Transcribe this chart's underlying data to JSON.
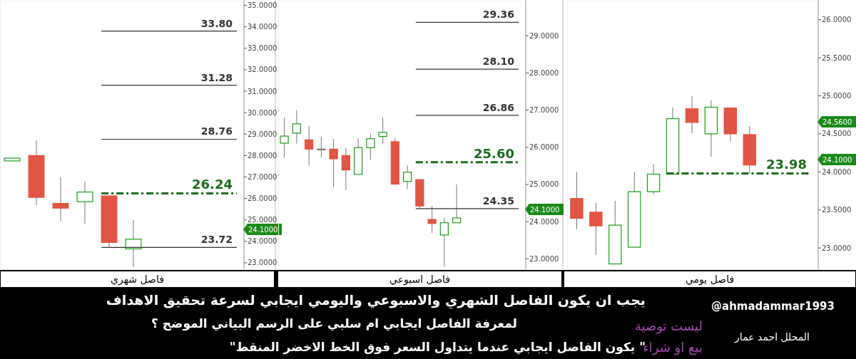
{
  "chart_data": [
    {
      "type": "candlestick",
      "xlabel": "فاصل شهري",
      "categories": [
        null,
        null,
        null,
        null,
        null,
        null,
        null,
        null,
        null,
        null
      ],
      "ohlc": [
        [
          27.75,
          27.9,
          27.75,
          27.88
        ],
        [
          28.0,
          28.7,
          25.7,
          26.05
        ],
        [
          25.77,
          27.0,
          24.93,
          25.55
        ],
        [
          25.85,
          26.79,
          24.83,
          26.3
        ],
        [
          26.12,
          26.12,
          23.7,
          23.95
        ],
        [
          23.65,
          25.0,
          22.8,
          24.1
        ],
        null,
        null,
        null,
        null
      ],
      "ylim": [
        22.7,
        35.25
      ],
      "yticks": [
        {
          "value": 23,
          "label": "23.0000"
        },
        {
          "value": 24,
          "label": "24.0000"
        },
        {
          "value": 25,
          "label": "25.0000"
        },
        {
          "value": 26,
          "label": "26.0000"
        },
        {
          "value": 27,
          "label": "27.0000"
        },
        {
          "value": 28,
          "label": "28.0000"
        },
        {
          "value": 29,
          "label": "29.0000"
        },
        {
          "value": 30,
          "label": "30.0000"
        },
        {
          "value": 31,
          "label": "31.0000"
        },
        {
          "value": 32,
          "label": "32.0000"
        },
        {
          "value": 33,
          "label": "33.0000"
        },
        {
          "value": 34,
          "label": "34.0000"
        },
        {
          "value": 35,
          "label": "35.0000"
        }
      ],
      "ref_lines": [
        {
          "axis": "y",
          "value": 33.8,
          "label": "33.80",
          "color": "#333333",
          "line_style": "solid"
        },
        {
          "axis": "y",
          "value": 31.28,
          "label": "31.28",
          "color": "#333333",
          "line_style": "solid"
        },
        {
          "axis": "y",
          "value": 28.76,
          "label": "28.76",
          "color": "#333333",
          "line_style": "solid"
        },
        {
          "axis": "y",
          "value": 26.24,
          "label": "26.24",
          "color": "#1f6b1f",
          "line_style": "dashed"
        },
        {
          "axis": "y",
          "value": 23.72,
          "label": "23.72",
          "color": "#333333",
          "line_style": "solid"
        }
      ],
      "annotations": [
        "24.1000"
      ]
    },
    {
      "type": "candlestick",
      "xlabel": "فاصل اسبوعي",
      "categories": [
        null,
        null,
        null,
        null,
        null,
        null,
        null,
        null,
        null,
        null,
        null,
        null,
        null,
        null,
        null,
        null,
        null,
        null,
        null,
        null
      ],
      "ohlc": [
        [
          26.11,
          26.8,
          25.72,
          26.3
        ],
        [
          26.38,
          27.0,
          26.1,
          26.63
        ],
        [
          26.2,
          26.57,
          25.51,
          25.95
        ],
        [
          25.95,
          26.29,
          25.73,
          25.95
        ],
        [
          25.95,
          26.22,
          24.93,
          25.69
        ],
        [
          25.78,
          25.99,
          24.85,
          25.39
        ],
        [
          25.27,
          26.24,
          25.27,
          25.99
        ],
        [
          25.99,
          26.37,
          25.67,
          26.23
        ],
        [
          26.29,
          26.8,
          26.1,
          26.4
        ],
        [
          26.15,
          26.24,
          25.01,
          25.01
        ],
        [
          25.08,
          25.51,
          24.88,
          25.33
        ],
        [
          25.13,
          25.13,
          24.35,
          24.42
        ],
        [
          24.06,
          24.42,
          23.7,
          23.95
        ],
        [
          23.64,
          24.1,
          22.79,
          23.97
        ],
        [
          23.97,
          25.0,
          23.97,
          24.1
        ],
        null,
        null,
        null,
        null,
        null
      ],
      "ylim": [
        22.72,
        29.96
      ],
      "yticks": [
        {
          "value": 23,
          "label": "23.0000"
        },
        {
          "value": 24,
          "label": "24.0000"
        },
        {
          "value": 25,
          "label": "25.0000"
        },
        {
          "value": 26,
          "label": "26.0000"
        },
        {
          "value": 27,
          "label": "27.0000"
        },
        {
          "value": 28,
          "label": "28.0000"
        },
        {
          "value": 29,
          "label": "29.0000"
        }
      ],
      "ref_lines": [
        {
          "axis": "y",
          "value": 29.36,
          "label": "29.36",
          "color": "#333333",
          "line_style": "solid"
        },
        {
          "axis": "y",
          "value": 28.1,
          "label": "28.10",
          "color": "#333333",
          "line_style": "solid"
        },
        {
          "axis": "y",
          "value": 26.86,
          "label": "26.86",
          "color": "#333333",
          "line_style": "solid"
        },
        {
          "axis": "y",
          "value": 25.6,
          "label": "25.60",
          "color": "#1f6b1f",
          "line_style": "dashed"
        },
        {
          "axis": "y",
          "value": 24.35,
          "label": "24.35",
          "color": "#333333",
          "line_style": "solid"
        }
      ],
      "annotations": [
        "24.1000"
      ]
    },
    {
      "type": "candlestick",
      "xlabel": "فاصل يومي",
      "categories": [
        null,
        null,
        null,
        null,
        null,
        null,
        null,
        null,
        null,
        null,
        null,
        null,
        null
      ],
      "ohlc": [
        [
          23.65,
          24.0,
          23.25,
          23.39
        ],
        [
          23.47,
          23.59,
          22.91,
          23.29
        ],
        [
          22.79,
          23.62,
          22.79,
          23.3
        ],
        [
          23.01,
          24.0,
          23.01,
          23.74
        ],
        [
          23.74,
          24.1,
          23.71,
          23.97
        ],
        [
          23.97,
          24.85,
          23.97,
          24.7
        ],
        [
          24.83,
          25.0,
          24.51,
          24.65
        ],
        [
          24.5,
          24.94,
          24.2,
          24.85
        ],
        [
          24.84,
          24.84,
          24.4,
          24.5
        ],
        [
          24.49,
          24.6,
          23.98,
          24.09
        ],
        null,
        null,
        null
      ],
      "ylim": [
        22.72,
        26.26
      ],
      "yticks": [
        {
          "value": 23,
          "label": "23.0000"
        },
        {
          "value": 23.5,
          "label": "23.5000"
        },
        {
          "value": 24,
          "label": "24.0000"
        },
        {
          "value": 24.5,
          "label": "24.5000"
        },
        {
          "value": 25,
          "label": "25.0000"
        },
        {
          "value": 25.5,
          "label": "25.5000"
        },
        {
          "value": 26,
          "label": "26.0000"
        }
      ],
      "ref_lines": [
        {
          "axis": "y",
          "value": 23.98,
          "label": "23.98",
          "color": "#1f6b1f",
          "line_style": "dashed"
        }
      ],
      "annotations": [
        "24.5600",
        "24.1000"
      ]
    },
    {
      "type": "other",
      "annotations": [
        "يجب ان يكون الفاصل الشهري والاسبوعي واليومي ايجابي لسرعة تحقيق الاهداف",
        "لمعرفة الفاصل ايجابي ام سلبي على الرسم البياني الموضح ؟",
        "\"يكون الفاصل ايجابي عندما يتداول السعر فوق الخط الاخضر المنقط \"",
        "@ahmadammar1993",
        "ليست توصية",
        "بيع او شراء",
        "المحلل احمد عمار"
      ]
    }
  ]
}
